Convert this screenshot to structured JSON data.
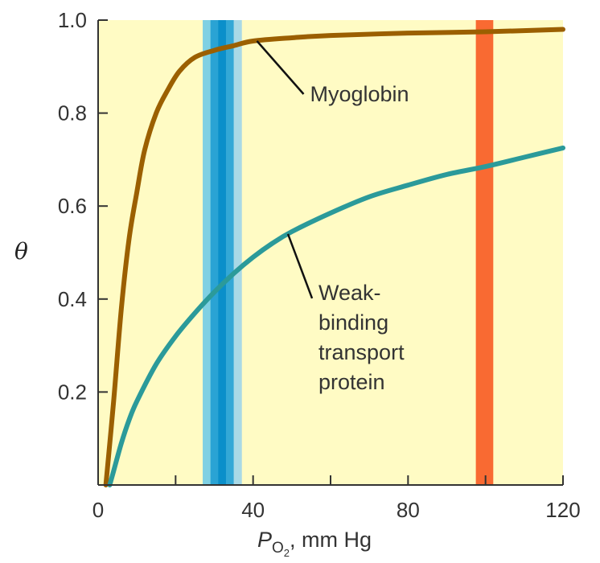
{
  "chart_data": {
    "type": "line",
    "xlabel": {
      "symbol": "P",
      "subscript": "O",
      "sub_subscript": "2",
      "rest": ", mm Hg"
    },
    "ylabel": "θ",
    "xlim": [
      0,
      120
    ],
    "ylim": [
      0,
      1.0
    ],
    "x_ticks": [
      {
        "value": 0,
        "label": "0"
      },
      {
        "value": 40,
        "label": "40"
      },
      {
        "value": 80,
        "label": "80"
      },
      {
        "value": 120,
        "label": "120"
      }
    ],
    "x_minor_ticks": [
      20,
      60,
      100
    ],
    "y_ticks": [
      {
        "value": 0.2,
        "label": "0.2"
      },
      {
        "value": 0.4,
        "label": "0.4"
      },
      {
        "value": 0.6,
        "label": "0.6"
      },
      {
        "value": 0.8,
        "label": "0.8"
      },
      {
        "value": 1.0,
        "label": "1.0"
      }
    ],
    "background_color": "#fffbc4",
    "bands": [
      {
        "x_start": 27,
        "x_end": 37,
        "colors": [
          "#7fd0e3",
          "#2aa3d4",
          "#0a8fca",
          "#33a8d6",
          "#a9d9e6"
        ]
      },
      {
        "x_start": 97.5,
        "x_end": 102,
        "color": "#f96a32"
      }
    ],
    "series": [
      {
        "color": "#9b5f00",
        "x": [
          2,
          4,
          6,
          8,
          10,
          12,
          15,
          18,
          21,
          25,
          30,
          35,
          40,
          50,
          60,
          80,
          100,
          120
        ],
        "y": [
          0.0,
          0.18,
          0.38,
          0.53,
          0.63,
          0.72,
          0.8,
          0.85,
          0.89,
          0.92,
          0.935,
          0.945,
          0.955,
          0.962,
          0.967,
          0.972,
          0.975,
          0.98
        ]
      },
      {
        "color": "#2b9a9a",
        "x": [
          3,
          4,
          6,
          8,
          10,
          15,
          20,
          25,
          30,
          35,
          40,
          45,
          50,
          60,
          70,
          80,
          90,
          100,
          110,
          120
        ],
        "y": [
          0.0,
          0.03,
          0.09,
          0.14,
          0.18,
          0.26,
          0.32,
          0.37,
          0.415,
          0.455,
          0.49,
          0.52,
          0.545,
          0.585,
          0.62,
          0.645,
          0.668,
          0.685,
          0.705,
          0.725
        ]
      }
    ],
    "annotations": [
      {
        "lines": [
          "Myoglobin"
        ],
        "pointer_x": 41,
        "pointer_y": 0.955
      },
      {
        "lines": [
          "Weak-",
          "binding",
          "transport",
          "protein"
        ],
        "pointer_x": 49,
        "pointer_y": 0.54
      }
    ]
  }
}
